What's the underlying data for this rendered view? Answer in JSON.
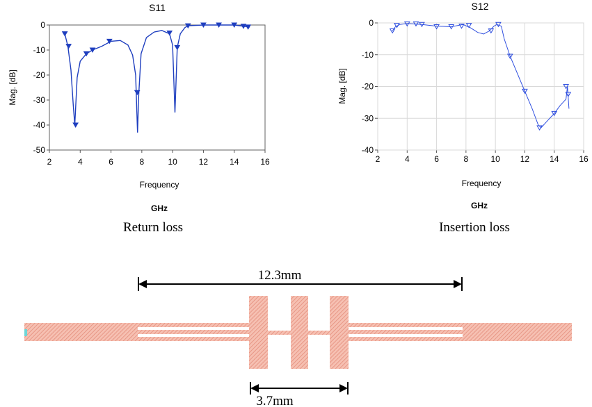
{
  "chart_data": [
    {
      "type": "line",
      "title": "S11",
      "xlabel": "Frequency",
      "ylabel": "Mag. [dB]",
      "unit": "GHz",
      "caption": "Return loss",
      "xlim": [
        2,
        16
      ],
      "ylim": [
        -50,
        0
      ],
      "xticks": [
        2,
        4,
        6,
        8,
        10,
        12,
        14,
        16
      ],
      "yticks": [
        0,
        -10,
        -20,
        -30,
        -40,
        -50
      ],
      "color": "#1f3fbf",
      "series": [
        {
          "x": [
            3.0,
            3.2,
            3.4,
            3.55,
            3.65,
            3.8,
            4.0,
            4.4,
            4.8,
            5.4,
            6.0,
            6.6,
            7.1,
            7.4,
            7.6,
            7.72,
            7.8,
            7.95,
            8.3,
            8.8,
            9.3,
            9.8,
            10.0,
            10.15,
            10.3,
            10.5,
            10.8,
            11.0,
            12.0,
            13.0,
            14.0,
            14.6,
            15.0
          ],
          "y": [
            -3.5,
            -8.5,
            -18,
            -32,
            -40,
            -21,
            -14.5,
            -11.5,
            -10,
            -8.5,
            -6.5,
            -6.2,
            -8,
            -12,
            -20,
            -43,
            -28,
            -11.5,
            -5,
            -2.8,
            -2.2,
            -3.5,
            -8,
            -35,
            -9,
            -3.5,
            -1,
            -0.3,
            0,
            0,
            0,
            -0.5,
            -0.8
          ]
        }
      ],
      "markers": {
        "x": [
          3.0,
          3.25,
          3.7,
          4.4,
          4.8,
          5.9,
          7.7,
          9.8,
          10.3,
          11.0,
          12.0,
          13.0,
          14.0,
          14.6,
          14.9
        ],
        "y": [
          -3.5,
          -8.5,
          -40,
          -11.5,
          -10,
          -6.5,
          -27,
          -3.2,
          -9,
          -0.3,
          0,
          0,
          0,
          -0.5,
          -0.8
        ]
      }
    },
    {
      "type": "line",
      "title": "S12",
      "xlabel": "Frequency",
      "ylabel": "Mag. [dB]",
      "unit": "GHz",
      "caption": "Insertion loss",
      "xlim": [
        2,
        16
      ],
      "ylim": [
        -40,
        0
      ],
      "xticks": [
        2,
        4,
        6,
        8,
        10,
        12,
        14,
        16
      ],
      "yticks": [
        0,
        -10,
        -20,
        -30,
        -40
      ],
      "color": "#2f4fdf",
      "series": [
        {
          "x": [
            3.0,
            3.2,
            3.5,
            4.0,
            5.0,
            6.0,
            7.0,
            7.8,
            8.3,
            8.8,
            9.2,
            9.6,
            9.9,
            10.1,
            10.4,
            10.6,
            11.0,
            11.5,
            12.0,
            12.5,
            12.9,
            13.1,
            13.5,
            14.0,
            14.4,
            14.8,
            14.9,
            15.0
          ],
          "y": [
            -2.5,
            -1.2,
            -0.5,
            -0.2,
            -0.5,
            -1.0,
            -1.2,
            -0.5,
            -1.5,
            -3.0,
            -3.5,
            -2.5,
            -1.0,
            -0.5,
            -1.0,
            -5.0,
            -10.5,
            -16,
            -21.5,
            -27,
            -32,
            -33,
            -31,
            -28.5,
            -26,
            -24,
            -20,
            -27
          ]
        }
      ],
      "markers": {
        "x": [
          3.0,
          3.3,
          4.0,
          4.6,
          5.0,
          6.0,
          7.0,
          7.7,
          8.2,
          9.7,
          10.2,
          11.0,
          12.0,
          13.0,
          14.0,
          14.8,
          14.95
        ],
        "y": [
          -2.5,
          -0.8,
          -0.3,
          -0.3,
          -0.5,
          -1.2,
          -1.2,
          -1.0,
          -0.8,
          -2.5,
          -0.5,
          -10.5,
          -21.5,
          -33,
          -28.5,
          -20,
          -22.5
        ]
      }
    }
  ],
  "layout_diagram": {
    "dim_total": "12.3mm",
    "dim_inner": "3.7mm",
    "trace_color": "#f4b0a0",
    "trace_hatch_color": "#e89888"
  }
}
